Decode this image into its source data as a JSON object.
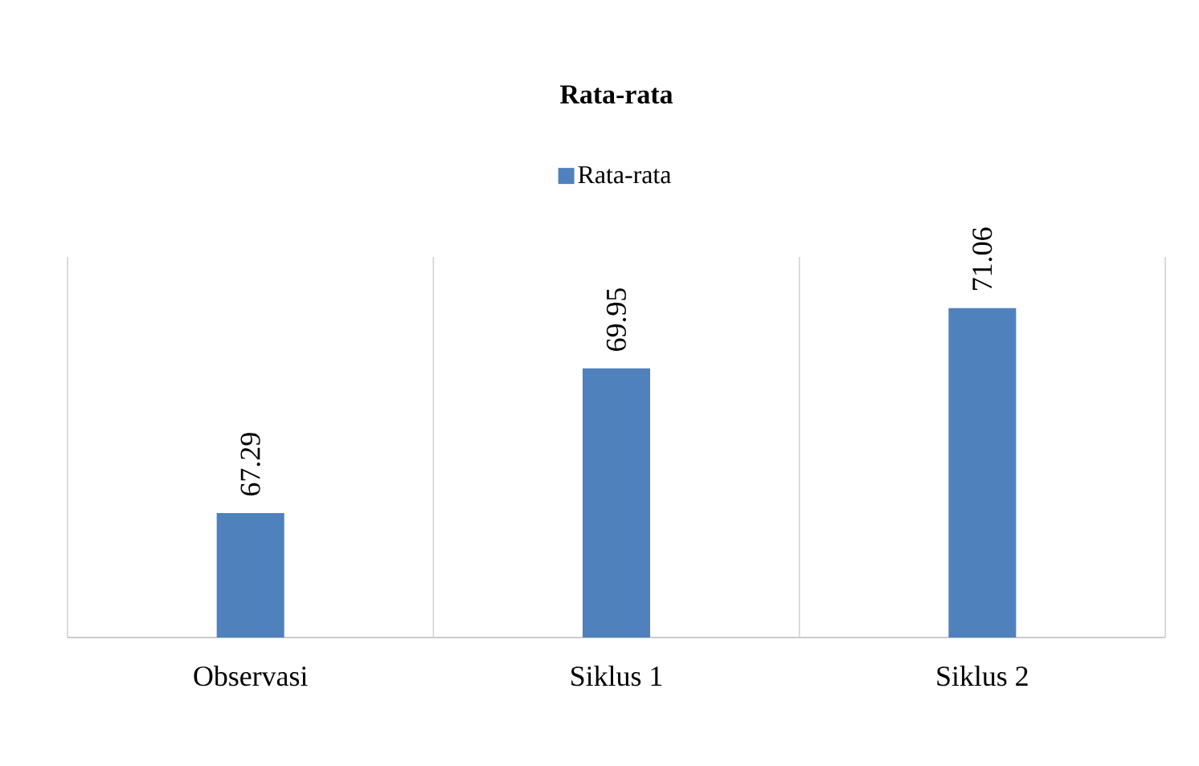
{
  "chart_data": {
    "type": "bar",
    "title": "Rata-rata",
    "categories": [
      "Observasi",
      "Siklus 1",
      "Siklus 2"
    ],
    "series": [
      {
        "name": "Rata-rata",
        "color": "#4f81bd",
        "values": [
          67.29,
          69.95,
          71.06
        ]
      }
    ],
    "ylim": [
      65,
      72
    ],
    "data_labels": true,
    "legend": "top",
    "grid": "x",
    "tick_labels": "x"
  }
}
